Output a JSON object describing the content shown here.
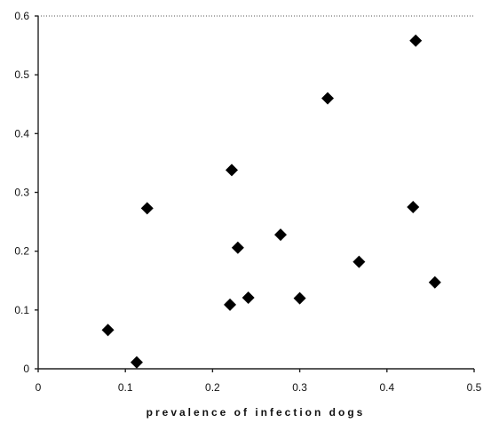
{
  "chart_data": {
    "type": "scatter",
    "title": "",
    "xlabel": "prevalence of infection dogs",
    "ylabel": "",
    "xlim": [
      0,
      0.5
    ],
    "ylim": [
      0,
      0.6
    ],
    "x_ticks": [
      "0",
      "0.1",
      "0.2",
      "0.3",
      "0.4",
      "0.5"
    ],
    "y_ticks": [
      "0",
      "0.1",
      "0.2",
      "0.3",
      "0.4",
      "0.5",
      "0.6"
    ],
    "grid": false,
    "legend": "none",
    "marker": "diamond",
    "marker_color": "#000000",
    "points": [
      {
        "x": 0.08,
        "y": 0.066
      },
      {
        "x": 0.113,
        "y": 0.011
      },
      {
        "x": 0.125,
        "y": 0.273
      },
      {
        "x": 0.22,
        "y": 0.109
      },
      {
        "x": 0.222,
        "y": 0.338
      },
      {
        "x": 0.229,
        "y": 0.206
      },
      {
        "x": 0.241,
        "y": 0.121
      },
      {
        "x": 0.278,
        "y": 0.228
      },
      {
        "x": 0.3,
        "y": 0.12
      },
      {
        "x": 0.332,
        "y": 0.46
      },
      {
        "x": 0.368,
        "y": 0.182
      },
      {
        "x": 0.43,
        "y": 0.275
      },
      {
        "x": 0.433,
        "y": 0.558
      },
      {
        "x": 0.455,
        "y": 0.147
      }
    ]
  }
}
